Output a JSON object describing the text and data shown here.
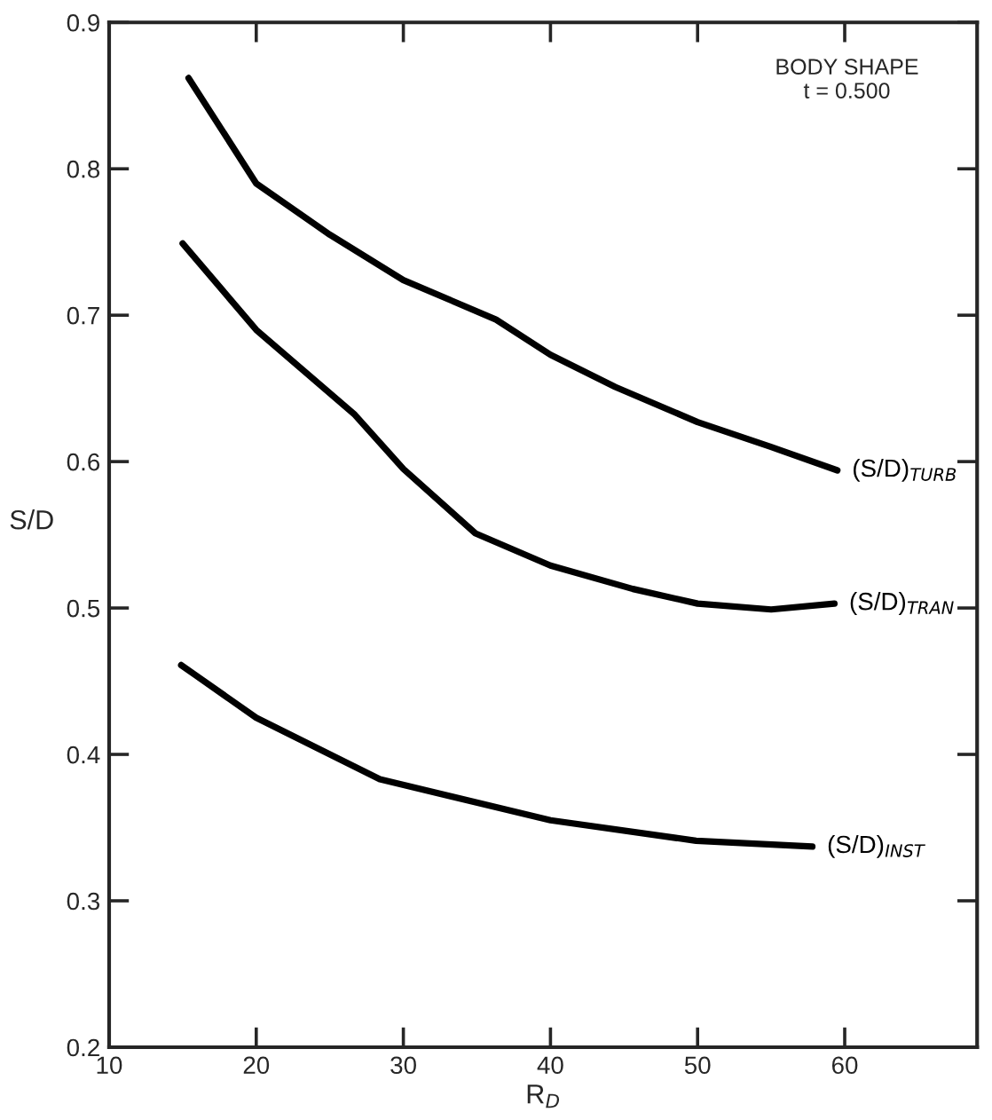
{
  "chart_data": {
    "type": "line",
    "xlabel": "R$_{D}$",
    "ylabel": "S/D",
    "xlim": [
      10,
      69
    ],
    "ylim": [
      0.2,
      0.9
    ],
    "xticks": [
      10,
      20,
      30,
      40,
      50,
      60
    ],
    "yticks": [
      0.2,
      0.3,
      0.4,
      0.5,
      0.6,
      0.7,
      0.8,
      0.9
    ],
    "grid": false,
    "legend": false,
    "marker": "none",
    "line_style": "solid",
    "annotations": [
      "BODY SHAPE\nt = 0.500"
    ],
    "series": [
      {
        "name": "(S/D)$_{TURB}$",
        "color": "#000000",
        "x": [
          15.4,
          20,
          25,
          30,
          36.3,
          40,
          44.4,
          50,
          55,
          59.5
        ],
        "values": [
          0.862,
          0.79,
          0.755,
          0.724,
          0.697,
          0.673,
          0.651,
          0.627,
          0.61,
          0.594
        ]
      },
      {
        "name": "(S/D)$_{TRAN}$",
        "color": "#000000",
        "x": [
          15,
          20,
          26.7,
          30,
          34.9,
          40,
          45.6,
          50,
          55,
          59.3
        ],
        "values": [
          0.749,
          0.69,
          0.632,
          0.595,
          0.551,
          0.529,
          0.513,
          0.503,
          0.499,
          0.503
        ]
      },
      {
        "name": "(S/D)$_{INST}$",
        "color": "#000000",
        "x": [
          14.9,
          20,
          28.4,
          40,
          49.9,
          57.8
        ],
        "values": [
          0.461,
          0.425,
          0.383,
          0.355,
          0.341,
          0.337
        ]
      }
    ]
  }
}
